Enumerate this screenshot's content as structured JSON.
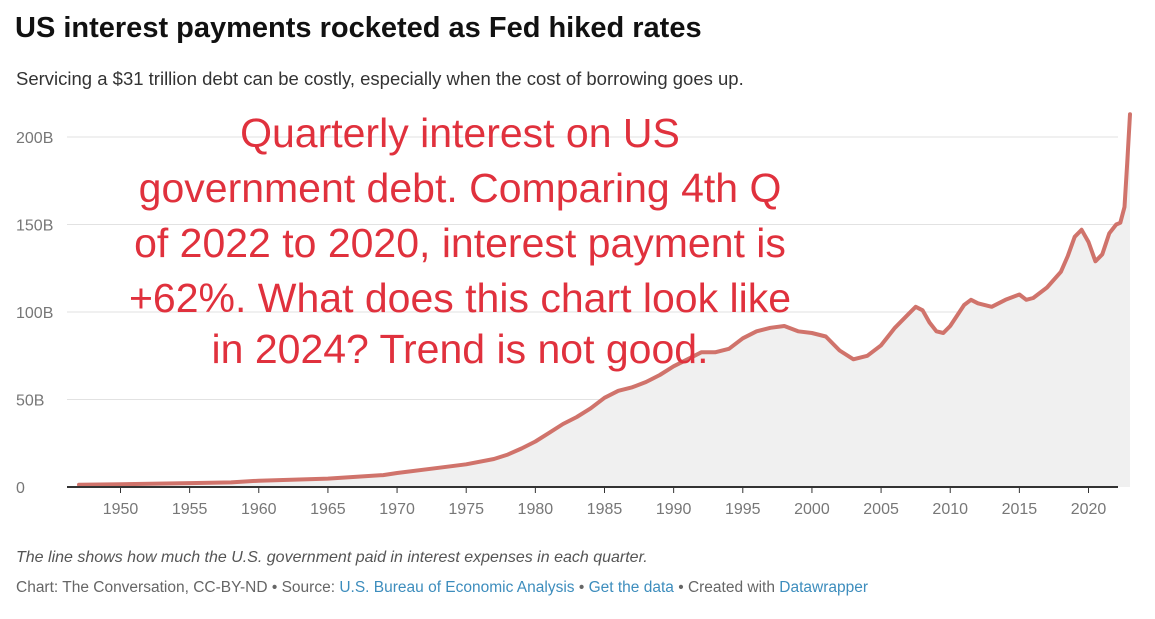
{
  "header": {
    "title": "US interest payments rocketed as Fed hiked rates",
    "subtitle": "Servicing a $31 trillion debt can be costly, especially when the cost of borrowing goes up."
  },
  "annotation": {
    "lines": [
      "Quarterly interest on US",
      "government debt. Comparing 4th Q",
      "of 2022 to 2020, interest payment is",
      "+62%. What does this chart look like",
      "in 2024? Trend is not good."
    ],
    "color": "#e0313d"
  },
  "footer": {
    "note": "The line shows how much the U.S. government paid in interest expenses in each quarter.",
    "chart_credit": "Chart: The Conversation, CC-BY-ND",
    "separator": " • ",
    "source_label": "Source: ",
    "source_link": "U.S. Bureau of Economic Analysis",
    "get_data_link": "Get the data",
    "created_label": "Created with ",
    "created_link": "Datawrapper"
  },
  "chart_data": {
    "type": "area",
    "title": "US interest payments rocketed as Fed hiked rates",
    "subtitle": "Servicing a $31 trillion debt can be costly, especially when the cost of borrowing goes up.",
    "xlabel": "",
    "ylabel": "",
    "ylim": [
      0,
      200
    ],
    "xlim": [
      1947,
      2023
    ],
    "yticks": [
      0,
      50,
      100,
      150,
      200
    ],
    "ytick_labels": [
      "0",
      "50B",
      "100B",
      "150B",
      "200B"
    ],
    "xticks": [
      1950,
      1955,
      1960,
      1965,
      1970,
      1975,
      1980,
      1985,
      1990,
      1995,
      2000,
      2005,
      2010,
      2015,
      2020
    ],
    "grid": true,
    "line_color": "#d0736b",
    "area_color": "#f0f0f0",
    "series": [
      {
        "x": [
          1947,
          1950,
          1955,
          1958,
          1960,
          1965,
          1969,
          1970,
          1973,
          1975,
          1977,
          1978,
          1979,
          1980,
          1981,
          1982,
          1983,
          1984,
          1985,
          1986,
          1987,
          1988,
          1989,
          1990,
          1991,
          1992,
          1993,
          1994,
          1995,
          1996,
          1997,
          1998,
          1999,
          2000,
          2001,
          2002,
          2003,
          2004,
          2005,
          2006,
          2007,
          2007.5,
          2008,
          2008.5,
          2009,
          2009.5,
          2010,
          2011,
          2011.5,
          2012,
          2013,
          2014,
          2015,
          2015.5,
          2016,
          2017,
          2018,
          2018.5,
          2019,
          2019.5,
          2020,
          2020.5,
          2021,
          2021.5,
          2022,
          2022.3,
          2022.6,
          2022.8,
          2023
        ],
        "values": [
          1.3,
          1.6,
          2.2,
          2.6,
          3.6,
          4.8,
          6.8,
          8.0,
          11.0,
          13.0,
          16.0,
          18.5,
          22.0,
          26.0,
          31.0,
          36.0,
          40.0,
          45.0,
          51.0,
          55.0,
          57.0,
          60.0,
          64.0,
          69.0,
          73.0,
          77.0,
          77.0,
          79.0,
          85.0,
          89.0,
          91.0,
          92.0,
          89.0,
          88.0,
          86.0,
          78.0,
          73.0,
          75.0,
          81.0,
          91.0,
          99.0,
          103.0,
          101.0,
          94.0,
          89.0,
          88.0,
          92.0,
          104.0,
          107.0,
          105.0,
          103.0,
          107.0,
          110.0,
          107.0,
          108.0,
          114.0,
          123.0,
          132.0,
          143.0,
          147.0,
          140.0,
          129.0,
          133.0,
          145.0,
          150.0,
          151.0,
          160.0,
          185.0,
          213.0
        ]
      }
    ]
  }
}
